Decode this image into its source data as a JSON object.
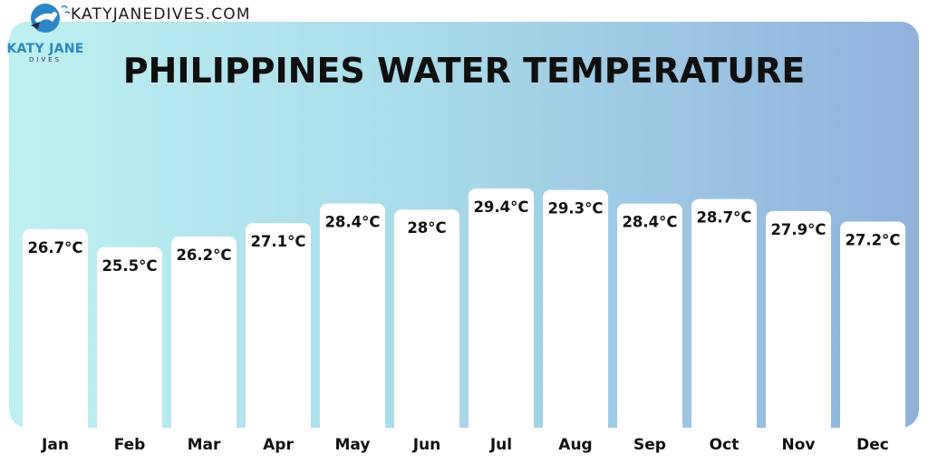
{
  "header": {
    "site_url": "KATYJANEDIVES.COM",
    "logo_name": "KATY JANE",
    "logo_sub": "DIVES",
    "logo_icon": "diver-icon"
  },
  "colors": {
    "panel_start": "#bff0f2",
    "panel_end": "#8fb2dc",
    "bar_fill": "#ffffff",
    "text": "#111111",
    "brand": "#2b86c5"
  },
  "chart_data": {
    "type": "bar",
    "title": "PHILIPPINES WATER TEMPERATURE",
    "xlabel": "",
    "ylabel": "",
    "unit": "°C",
    "categories": [
      "Jan",
      "Feb",
      "Mar",
      "Apr",
      "May",
      "Jun",
      "Jul",
      "Aug",
      "Sep",
      "Oct",
      "Nov",
      "Dec"
    ],
    "values": [
      26.7,
      25.5,
      26.2,
      27.1,
      28.4,
      28,
      29.4,
      29.3,
      28.4,
      28.7,
      27.9,
      27.2
    ],
    "data_labels": [
      "26.7°C",
      "25.5°C",
      "26.2°C",
      "27.1°C",
      "28.4°C",
      "28°C",
      "29.4°C",
      "29.3°C",
      "28.4°C",
      "28.7°C",
      "27.9°C",
      "27.2°C"
    ],
    "ylim": [
      13.5,
      29.4
    ],
    "grid": false,
    "legend": "none"
  }
}
